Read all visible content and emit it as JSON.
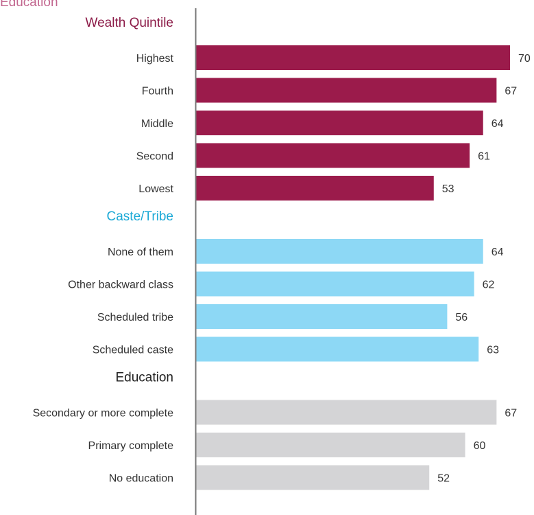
{
  "chart_data": {
    "type": "bar",
    "orientation": "horizontal",
    "top_cut_label": "Education",
    "xlim": [
      0,
      72
    ],
    "groups": [
      {
        "title": "Wealth Quintile",
        "color": "#9B1B4B",
        "title_color": "#8B1A47",
        "categories": [
          "Highest",
          "Fourth",
          "Middle",
          "Second",
          "Lowest"
        ],
        "values": [
          70,
          67,
          64,
          61,
          53
        ]
      },
      {
        "title": "Caste/Tribe",
        "color": "#8DD8F5",
        "title_color": "#1BA9D6",
        "categories": [
          "None of them",
          "Other backward class",
          "Scheduled tribe",
          "Scheduled caste"
        ],
        "values": [
          64,
          62,
          56,
          63
        ]
      },
      {
        "title": "Education",
        "color": "#D4D4D6",
        "title_color": "#222222",
        "categories": [
          "Secondary or more complete",
          "Primary complete",
          "No education"
        ],
        "values": [
          67,
          60,
          52
        ]
      }
    ],
    "axis_color": "#777777",
    "top_cut_color": "#C2678F"
  }
}
